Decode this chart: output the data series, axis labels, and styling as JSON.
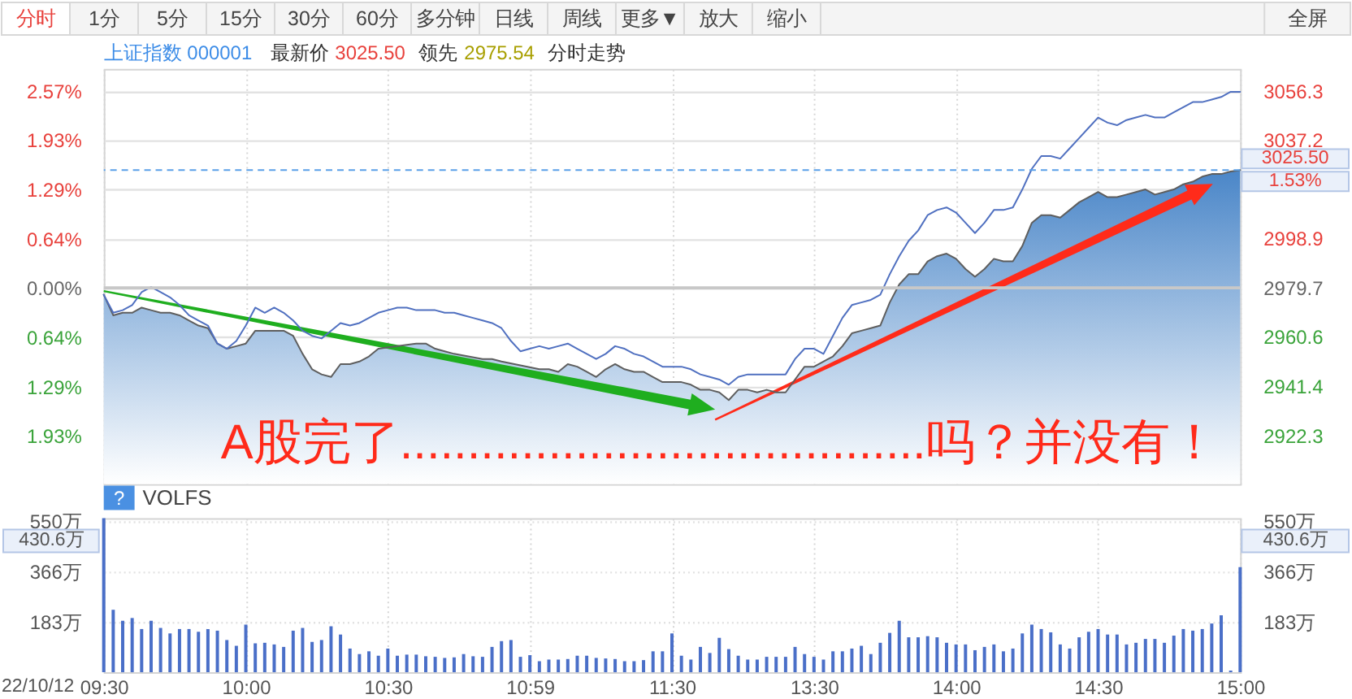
{
  "chart_data": [
    {
      "type": "other",
      "annotations": [
        "分时",
        "1分",
        "5分",
        "15分",
        "30分",
        "60分",
        "多分钟",
        "日线",
        "周线",
        "更多▼",
        "放大",
        "缩小",
        "全屏"
      ]
    },
    {
      "type": "line",
      "title": "上证指数 000001",
      "categories": [
        null,
        null,
        null,
        null,
        null,
        null,
        null,
        null,
        null,
        null,
        null,
        null,
        null,
        null,
        null,
        null,
        null,
        null,
        null,
        null,
        null,
        null,
        null,
        null,
        null,
        null,
        null,
        null,
        null,
        null,
        null,
        null,
        null,
        null,
        null,
        null,
        null,
        null,
        null,
        null,
        null,
        null,
        null,
        null,
        null,
        null,
        null,
        null,
        null,
        null,
        null,
        null,
        null,
        null,
        null,
        null,
        null,
        null,
        null,
        null,
        null,
        null,
        null,
        null,
        null,
        null,
        null,
        null,
        null,
        null,
        null,
        null,
        null,
        null,
        null,
        null,
        null,
        null,
        null,
        null,
        null,
        null,
        null,
        null,
        null,
        null,
        null,
        null,
        null,
        null,
        null,
        null,
        null,
        null,
        null,
        null,
        null,
        null,
        null,
        null,
        null,
        null,
        null,
        null,
        null,
        null,
        null,
        null,
        null,
        null,
        null,
        null,
        null,
        null,
        null,
        null,
        null,
        null,
        null,
        null,
        null
      ],
      "series": [
        {
          "type": "area",
          "color": "#5e5e5e",
          "values": [
            2977,
            2969,
            2970,
            2970,
            2972,
            2971,
            2970,
            2970,
            2969,
            2967,
            2965,
            2964,
            2958,
            2956,
            2957,
            2958,
            2963,
            2963,
            2963,
            2963,
            2961,
            2954,
            2948,
            2946,
            2945,
            2950,
            2950,
            2951,
            2953,
            2956,
            null,
            null,
            null,
            2958,
            2958,
            2956,
            2955,
            2954,
            null,
            null,
            2952,
            2952,
            2951,
            null,
            null,
            null,
            2948,
            2948,
            2947,
            2950,
            2949,
            2947,
            2945,
            2948,
            2950,
            2948,
            2947,
            2947,
            2945,
            2943,
            2943,
            2943,
            2942,
            2940,
            2940,
            2939,
            2936,
            2940,
            2940,
            2939,
            2940,
            2939,
            2939,
            null,
            2949,
            2949,
            null,
            2953,
            2957,
            2962,
            2963,
            2964,
            2965,
            2974,
            2981,
            2985,
            2985,
            2990,
            2992,
            2993,
            2991,
            2987,
            2984,
            2987,
            2991,
            2990,
            2990,
            2996,
            3005,
            3008,
            3008,
            3007,
            3010,
            3013,
            3015,
            3017,
            3015,
            3015,
            3016,
            3017,
            3018,
            3016,
            3017,
            3018,
            3020,
            3021,
            3023,
            3024,
            3024,
            3025,
            3025.5
          ]
        },
        {
          "type": "line",
          "color": "#5070c0",
          "values": [
            2977,
            2970,
            2971,
            2973,
            2978,
            2980,
            2978,
            2976,
            2973,
            2969,
            2967,
            2965,
            2958,
            2956,
            2959,
            2965,
            2972,
            2970,
            2972,
            2970,
            2967,
            2963,
            2961,
            2960,
            2963,
            2966,
            2965,
            2966,
            2968,
            2970,
            2971,
            2972,
            2972,
            2971,
            2971,
            2971,
            2970,
            2970,
            2969,
            2968,
            2967,
            2966,
            2964,
            2959,
            2955,
            2956,
            2957,
            2956,
            2957,
            2958,
            2956,
            2954,
            2952,
            2954,
            2957,
            2956,
            2954,
            2953,
            2951,
            2949,
            2949,
            2949,
            2948,
            2946,
            2945,
            2944,
            2942,
            2945,
            2946,
            2946,
            2946,
            2946,
            2946,
            2952,
            2956,
            2956,
            2954,
            2961,
            2968,
            2973,
            2974,
            2975,
            2977,
            2985,
            2992,
            2998,
            3002,
            3008,
            3010,
            3011,
            3009,
            3005,
            3001,
            3005,
            3010,
            3010,
            3011,
            3018,
            3026,
            3031,
            3031,
            3030,
            3034,
            3038,
            3042,
            3046,
            3044,
            3043,
            3045,
            3046,
            3047,
            3046,
            3046,
            3048,
            3050,
            3052,
            3052,
            3053,
            3054,
            3056,
            3056
          ]
        }
      ],
      "ylim": [
        2903.3,
        3064.9
      ],
      "yticks": [
        3056.3,
        3037.2,
        {
          "value": 3018.1,
          "label": null
        },
        2998.9,
        2979.7,
        2960.6,
        2941.4,
        2922.3
      ],
      "y2lim": [
        -2.56,
        2.86
      ],
      "y2ticks": [
        {
          "value": 2.57,
          "label": "2.57%"
        },
        {
          "value": 1.93,
          "label": "1.93%"
        },
        {
          "value": 1.29,
          "label": "1.29%"
        },
        {
          "value": 0.64,
          "label": "0.64%"
        },
        {
          "value": 0,
          "label": "0.00%"
        },
        {
          "value": -0.64,
          "label": "0.64%"
        },
        {
          "value": -1.29,
          "label": "1.29%"
        },
        {
          "value": -1.93,
          "label": "1.93%"
        }
      ],
      "ref_lines": [
        {
          "axis": "y",
          "value": 2979.7,
          "color": "#c8c8c8"
        },
        {
          "axis": "y",
          "value": 3025.5,
          "label": "3025.50",
          "color": "#5aa0e8",
          "line_style": "dashed"
        }
      ],
      "annotations": [
        "最新价",
        "3025.50",
        "领先",
        "2975.54",
        "分时走势",
        "A股完了.......................................吗？并没有！",
        "1.53%"
      ],
      "grid": true
    },
    {
      "type": "bar",
      "title": "VOLFS",
      "categories": [
        "09:30",
        null,
        null,
        null,
        null,
        null,
        null,
        null,
        null,
        null,
        null,
        null,
        null,
        null,
        null,
        "10:00",
        null,
        null,
        null,
        null,
        null,
        null,
        null,
        null,
        null,
        null,
        null,
        null,
        null,
        null,
        "10:30",
        null,
        null,
        null,
        null,
        null,
        null,
        null,
        null,
        null,
        null,
        null,
        null,
        null,
        null,
        "10:59",
        null,
        null,
        null,
        null,
        null,
        null,
        null,
        null,
        null,
        null,
        null,
        null,
        null,
        null,
        "11:30",
        null,
        null,
        null,
        null,
        null,
        null,
        null,
        null,
        null,
        null,
        null,
        null,
        null,
        null,
        "13:30",
        null,
        null,
        null,
        null,
        null,
        null,
        null,
        null,
        null,
        null,
        null,
        null,
        null,
        null,
        "14:00",
        null,
        null,
        null,
        null,
        null,
        null,
        null,
        null,
        null,
        null,
        null,
        null,
        null,
        null,
        "14:30",
        null,
        null,
        null,
        null,
        null,
        null,
        null,
        null,
        null,
        null,
        null,
        null,
        null,
        null,
        "15:00"
      ],
      "values": [
        560,
        227,
        187,
        197,
        157,
        187,
        161,
        141,
        157,
        157,
        147,
        157,
        151,
        117,
        96,
        173,
        105,
        107,
        101,
        92,
        151,
        161,
        110,
        117,
        167,
        137,
        86,
        66,
        76,
        60,
        86,
        60,
        64,
        64,
        58,
        56,
        52,
        54,
        66,
        58,
        56,
        92,
        113,
        117,
        56,
        62,
        40,
        46,
        46,
        48,
        60,
        60,
        52,
        50,
        48,
        40,
        40,
        44,
        76,
        76,
        141,
        60,
        46,
        92,
        70,
        125,
        84,
        60,
        46,
        46,
        56,
        56,
        56,
        92,
        66,
        56,
        46,
        76,
        76,
        86,
        96,
        66,
        107,
        143,
        187,
        127,
        127,
        131,
        127,
        107,
        101,
        101,
        80,
        92,
        101,
        76,
        86,
        141,
        173,
        157,
        145,
        101,
        86,
        127,
        147,
        157,
        137,
        137,
        101,
        107,
        121,
        121,
        107,
        133,
        157,
        151,
        157,
        177,
        207,
        6,
        382
      ],
      "color": "#4a6fc8",
      "ylim": [
        0,
        560
      ],
      "yticks": [
        {
          "value": 550,
          "label": "550万"
        },
        {
          "value": 366,
          "label": "366万"
        },
        {
          "value": 183,
          "label": "183万"
        }
      ],
      "y2lim": [
        0,
        560
      ],
      "y2ticks": [
        {
          "value": 550,
          "label": "550万"
        },
        {
          "value": 366,
          "label": "366万"
        },
        {
          "value": 183,
          "label": "183万"
        }
      ],
      "annotations": [
        "?",
        "430.6万",
        "430.6万",
        "22/10/12"
      ],
      "grid": true
    }
  ]
}
